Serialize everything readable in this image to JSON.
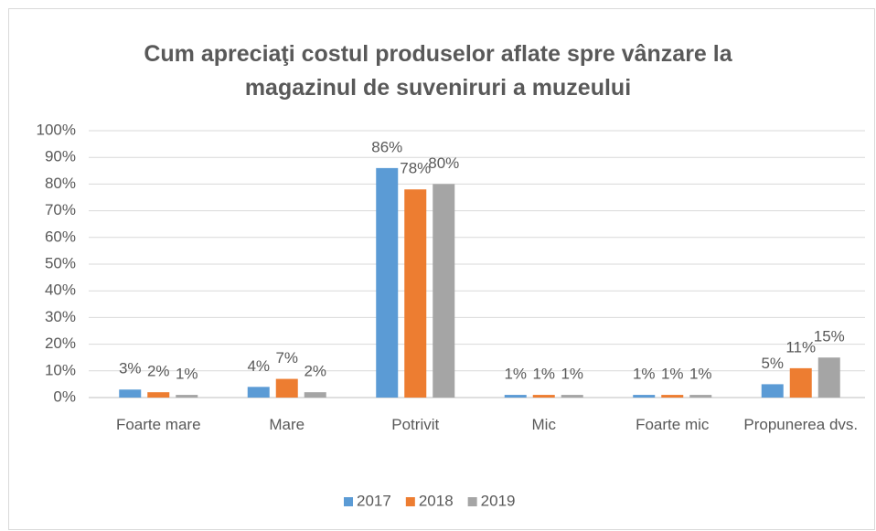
{
  "chart_data": {
    "type": "bar",
    "title": "Cum apreciaţi costul produselor aflate spre vânzare la magazinul de suveniruri a muzeului",
    "categories": [
      "Foarte mare",
      "Mare",
      "Potrivit",
      "Mic",
      "Foarte mic",
      "Propunerea dvs."
    ],
    "series": [
      {
        "name": "2017",
        "color": "#5b9bd5",
        "values": [
          3,
          4,
          86,
          1,
          1,
          5
        ],
        "value_labels": [
          "3%",
          "4%",
          "86%",
          "1%",
          "1%",
          "5%"
        ]
      },
      {
        "name": "2018",
        "color": "#ed7d31",
        "values": [
          2,
          7,
          78,
          1,
          1,
          11
        ],
        "value_labels": [
          "2%",
          "7%",
          "78%",
          "1%",
          "1%",
          "11%"
        ]
      },
      {
        "name": "2019",
        "color": "#a5a5a5",
        "values": [
          1,
          2,
          80,
          1,
          1,
          15
        ],
        "value_labels": [
          "1%",
          "2%",
          "80%",
          "1%",
          "1%",
          "15%"
        ]
      }
    ],
    "ylim": [
      0,
      100
    ],
    "yticks": [
      {
        "value": 0,
        "label": "0%"
      },
      {
        "value": 10,
        "label": "10%"
      },
      {
        "value": 20,
        "label": "20%"
      },
      {
        "value": 30,
        "label": "30%"
      },
      {
        "value": 40,
        "label": "40%"
      },
      {
        "value": 50,
        "label": "50%"
      },
      {
        "value": 60,
        "label": "60%"
      },
      {
        "value": 70,
        "label": "70%"
      },
      {
        "value": 80,
        "label": "80%"
      },
      {
        "value": 90,
        "label": "90%"
      },
      {
        "value": 100,
        "label": "100%"
      }
    ],
    "grid": true,
    "legend": "bottom"
  }
}
